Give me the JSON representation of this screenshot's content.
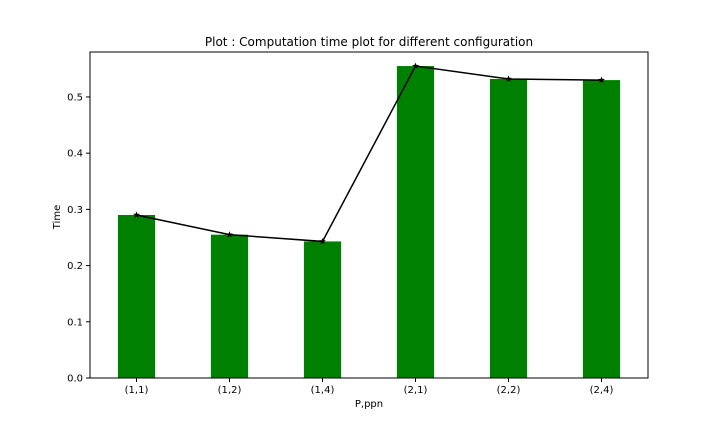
{
  "chart_data": {
    "type": "bar",
    "title": "Plot : Computation time plot for different configuration",
    "xlabel": "P,ppn",
    "ylabel": "Time",
    "categories": [
      "(1,1)",
      "(1,2)",
      "(1,4)",
      "(2,1)",
      "(2,2)",
      "(2,4)"
    ],
    "series": [
      {
        "type": "bar",
        "color": "#008000",
        "values": [
          0.29,
          0.255,
          0.243,
          0.555,
          0.532,
          0.53
        ]
      },
      {
        "type": "line",
        "marker": "star",
        "color": "#000000",
        "values": [
          0.29,
          0.255,
          0.243,
          0.555,
          0.532,
          0.53
        ]
      }
    ],
    "ylim": [
      0,
      0.58
    ],
    "yticks": [
      "0.0",
      "0.1",
      "0.2",
      "0.3",
      "0.4",
      "0.5"
    ],
    "grid": false,
    "legend": "none"
  }
}
